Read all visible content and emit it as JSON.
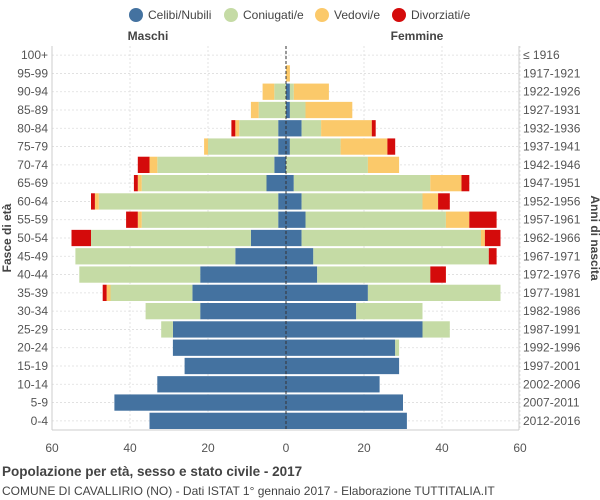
{
  "chart_data": {
    "type": "bar",
    "orientation": "horizontal-population-pyramid",
    "title": "Popolazione per età, sesso e stato civile - 2017",
    "subtitle": "COMUNE DI CAVALLIRIO (NO) - Dati ISTAT 1° gennaio 2017 - Elaborazione TUTTITALIA.IT",
    "left_header": "Maschi",
    "right_header": "Femmine",
    "ylabel_left": "Fasce di età",
    "ylabel_right": "Anni di nascita",
    "xlim": [
      -60,
      60
    ],
    "x_ticks": [
      -60,
      -40,
      -20,
      0,
      20,
      40,
      60
    ],
    "x_tick_labels": [
      "60",
      "40",
      "20",
      "0",
      "20",
      "40",
      "60"
    ],
    "grid": true,
    "legend": [
      {
        "name": "Celibi/Nubili",
        "color": "#4472a0"
      },
      {
        "name": "Coniugati/e",
        "color": "#c5dba5"
      },
      {
        "name": "Vedovi/e",
        "color": "#fbc96a"
      },
      {
        "name": "Divorziati/e",
        "color": "#d40b0b"
      }
    ],
    "age_groups": [
      "100+",
      "95-99",
      "90-94",
      "85-89",
      "80-84",
      "75-79",
      "70-74",
      "65-69",
      "60-64",
      "55-59",
      "50-54",
      "45-49",
      "40-44",
      "35-39",
      "30-34",
      "25-29",
      "20-24",
      "15-19",
      "10-14",
      "5-9",
      "0-4"
    ],
    "birth_years": [
      "≤ 1916",
      "1917-1921",
      "1922-1926",
      "1927-1931",
      "1932-1936",
      "1937-1941",
      "1942-1946",
      "1947-1951",
      "1952-1956",
      "1957-1961",
      "1962-1966",
      "1967-1971",
      "1972-1976",
      "1977-1981",
      "1982-1986",
      "1987-1991",
      "1992-1996",
      "1997-2001",
      "2002-2006",
      "2007-2011",
      "2012-2016"
    ],
    "males": {
      "celibi": [
        0,
        0,
        0,
        0,
        2,
        2,
        3,
        5,
        2,
        2,
        9,
        13,
        22,
        24,
        22,
        29,
        29,
        26,
        33,
        44,
        35
      ],
      "coniugati": [
        0,
        0,
        3,
        7,
        10,
        18,
        30,
        32,
        46,
        35,
        41,
        41,
        31,
        21,
        14,
        3,
        0,
        0,
        0,
        0,
        0
      ],
      "vedovi": [
        0,
        0,
        3,
        2,
        1,
        1,
        2,
        1,
        1,
        1,
        0,
        0,
        0,
        1,
        0,
        0,
        0,
        0,
        0,
        0,
        0
      ],
      "divorziati": [
        0,
        0,
        0,
        0,
        1,
        0,
        3,
        1,
        1,
        3,
        5,
        0,
        0,
        1,
        0,
        0,
        0,
        0,
        0,
        0,
        0
      ]
    },
    "females": {
      "nubili": [
        0,
        0,
        1,
        1,
        4,
        1,
        0,
        2,
        4,
        5,
        4,
        7,
        8,
        21,
        18,
        35,
        28,
        29,
        24,
        30,
        31
      ],
      "coniugate": [
        0,
        0,
        1,
        4,
        5,
        13,
        21,
        35,
        31,
        36,
        46,
        45,
        29,
        34,
        17,
        7,
        1,
        0,
        0,
        0,
        0
      ],
      "vedove": [
        0,
        1,
        9,
        12,
        13,
        12,
        8,
        8,
        4,
        6,
        1,
        0,
        0,
        0,
        0,
        0,
        0,
        0,
        0,
        0,
        0
      ],
      "divorziate": [
        0,
        0,
        0,
        0,
        1,
        2,
        0,
        2,
        3,
        7,
        4,
        2,
        4,
        0,
        0,
        0,
        0,
        0,
        0,
        0,
        0
      ]
    }
  }
}
